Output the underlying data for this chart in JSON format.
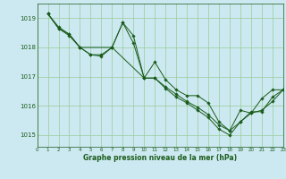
{
  "title": "Graphe pression niveau de la mer (hPa)",
  "background_color": "#cce8f0",
  "grid_color": "#99cc99",
  "line_color": "#1a5c1a",
  "marker_color": "#1a5c1a",
  "xlim": [
    0,
    23
  ],
  "ylim": [
    1014.6,
    1019.5
  ],
  "yticks": [
    1015,
    1016,
    1017,
    1018,
    1019
  ],
  "xticks": [
    0,
    1,
    2,
    3,
    4,
    5,
    6,
    7,
    8,
    9,
    10,
    11,
    12,
    13,
    14,
    15,
    16,
    17,
    18,
    19,
    20,
    21,
    22,
    23
  ],
  "series": [
    {
      "x": [
        1,
        2,
        3,
        4,
        5,
        6,
        7,
        8,
        9,
        10,
        11,
        12,
        13,
        14,
        15,
        16,
        17,
        18,
        19,
        20,
        21,
        22,
        23
      ],
      "y": [
        1019.15,
        1018.65,
        1018.45,
        1018.0,
        1017.75,
        1017.75,
        1018.0,
        1018.85,
        1018.4,
        1016.95,
        1017.5,
        1016.9,
        1016.55,
        1016.35,
        1016.35,
        1016.1,
        1015.45,
        1015.15,
        1015.85,
        1015.75,
        1016.25,
        1016.55,
        1016.55
      ]
    },
    {
      "x": [
        1,
        2,
        3,
        4,
        7,
        8,
        9,
        10,
        11,
        12,
        13,
        14,
        15,
        16,
        17,
        18,
        19,
        20,
        21,
        22,
        23
      ],
      "y": [
        1019.15,
        1018.7,
        1018.45,
        1018.0,
        1018.0,
        1018.85,
        1018.15,
        1016.95,
        1016.95,
        1016.65,
        1016.4,
        1016.15,
        1015.95,
        1015.7,
        1015.35,
        1015.15,
        1015.45,
        1015.8,
        1015.8,
        1016.3,
        1016.55
      ]
    },
    {
      "x": [
        1,
        2,
        3,
        4,
        5,
        6,
        7,
        10,
        11,
        12,
        13,
        14,
        15,
        16,
        17,
        18,
        19,
        20,
        21,
        22,
        23
      ],
      "y": [
        1019.15,
        1018.65,
        1018.4,
        1018.0,
        1017.75,
        1017.7,
        1018.0,
        1016.95,
        1016.95,
        1016.6,
        1016.3,
        1016.1,
        1015.85,
        1015.6,
        1015.2,
        1015.0,
        1015.45,
        1015.75,
        1015.85,
        1016.15,
        1016.55
      ]
    }
  ]
}
